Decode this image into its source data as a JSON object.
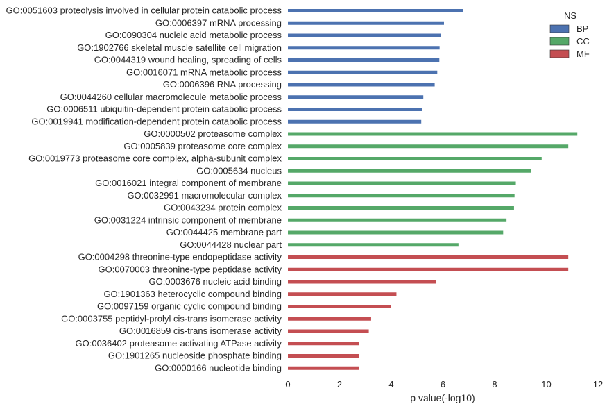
{
  "chart_data": {
    "type": "bar",
    "orientation": "horizontal",
    "xlabel": "p value(-log10)",
    "ylabel": "",
    "xlim": [
      0,
      12
    ],
    "xticks": [
      0,
      2,
      4,
      6,
      8,
      10,
      12
    ],
    "grid": false,
    "legend": {
      "title": "NS",
      "placement": "top-right",
      "entries": [
        {
          "name": "BP",
          "color": "#4C72B0"
        },
        {
          "name": "CC",
          "color": "#55A868"
        },
        {
          "name": "MF",
          "color": "#C44E52"
        }
      ]
    },
    "series": [
      {
        "name": "BP",
        "color": "#4C72B0",
        "categories": [
          "GO:0051603 proteolysis involved in cellular protein catabolic process",
          "GO:0006397 mRNA processing",
          "GO:0090304 nucleic acid metabolic process",
          "GO:1902766 skeletal muscle satellite cell migration",
          "GO:0044319 wound healing, spreading of cells",
          "GO:0016071 mRNA metabolic process",
          "GO:0006396 RNA processing",
          "GO:0044260 cellular macromolecule metabolic process",
          "GO:0006511 ubiquitin-dependent protein catabolic process",
          "GO:0019941 modification-dependent protein catabolic process"
        ],
        "values": [
          6.77,
          6.04,
          5.91,
          5.87,
          5.86,
          5.78,
          5.68,
          5.24,
          5.19,
          5.16
        ]
      },
      {
        "name": "CC",
        "color": "#55A868",
        "categories": [
          "GO:0000502 proteasome complex",
          "GO:0005839 proteasome core complex",
          "GO:0019773 proteasome core complex, alpha-subunit complex",
          "GO:0005634 nucleus",
          "GO:0016021 integral component of membrane",
          "GO:0032991 macromolecular complex",
          "GO:0043234 protein complex",
          "GO:0031224 intrinsic component of membrane",
          "GO:0044425 membrane part",
          "GO:0044428 nuclear part"
        ],
        "values": [
          11.2,
          10.85,
          9.82,
          9.4,
          8.82,
          8.77,
          8.75,
          8.46,
          8.33,
          6.6
        ]
      },
      {
        "name": "MF",
        "color": "#C44E52",
        "categories": [
          "GO:0004298 threonine-type endopeptidase activity",
          "GO:0070003 threonine-type peptidase activity",
          "GO:0003676 nucleic acid binding",
          "GO:1901363 heterocyclic compound binding",
          "GO:0097159 organic cyclic compound binding",
          "GO:0003755 peptidyl-prolyl cis-trans isomerase activity",
          "GO:0016859 cis-trans isomerase activity",
          "GO:0036402 proteasome-activating ATPase activity",
          "GO:1901265 nucleoside phosphate binding",
          "GO:0000166 nucleotide binding"
        ],
        "values": [
          10.85,
          10.85,
          5.72,
          4.2,
          4.0,
          3.22,
          3.13,
          2.75,
          2.74,
          2.74
        ]
      }
    ]
  }
}
